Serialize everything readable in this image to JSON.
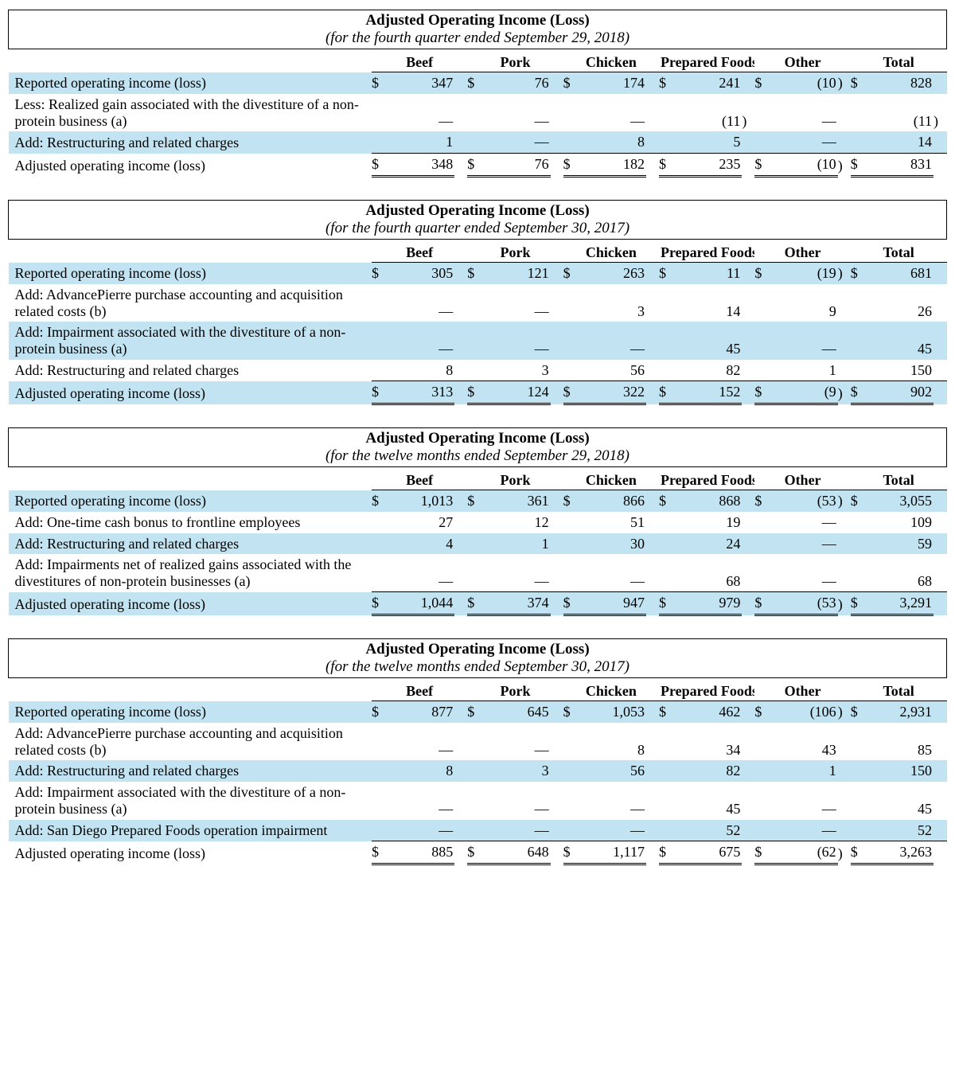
{
  "title": "Adjusted Operating Income (Loss)",
  "columns": [
    "Beef",
    "Pork",
    "Chicken",
    "Prepared Foods",
    "Other",
    "Total"
  ],
  "shade_color": "#c2e4f2",
  "tables": [
    {
      "subtitle": "(for the fourth quarter ended September 29, 2018)",
      "rows": [
        {
          "label": "Reported operating income (loss)",
          "shade": true,
          "dollar": true,
          "vals": [
            "347",
            "76",
            "174",
            "241",
            "(10)",
            "828"
          ]
        },
        {
          "label": "Less: Realized gain associated with the divestiture of a non-protein business (a)",
          "shade": false,
          "vals": [
            "—",
            "—",
            "—",
            "(11)",
            "—",
            "(11)"
          ]
        },
        {
          "label": "Add: Restructuring and related charges",
          "shade": true,
          "sumline": true,
          "vals": [
            "1",
            "—",
            "8",
            "5",
            "—",
            "14"
          ]
        },
        {
          "label": "Adjusted operating income (loss)",
          "shade": false,
          "dollar": true,
          "total": true,
          "vals": [
            "348",
            "76",
            "182",
            "235",
            "(10)",
            "831"
          ]
        }
      ]
    },
    {
      "subtitle": "(for the fourth quarter ended September 30, 2017)",
      "rows": [
        {
          "label": "Reported operating income (loss)",
          "shade": true,
          "dollar": true,
          "vals": [
            "305",
            "121",
            "263",
            "11",
            "(19)",
            "681"
          ]
        },
        {
          "label": "Add: AdvancePierre purchase accounting and acquisition related costs (b)",
          "shade": false,
          "vals": [
            "—",
            "—",
            "3",
            "14",
            "9",
            "26"
          ]
        },
        {
          "label": "Add: Impairment associated with the divestiture of a non-protein business (a)",
          "shade": true,
          "vals": [
            "—",
            "—",
            "—",
            "45",
            "—",
            "45"
          ]
        },
        {
          "label": "Add: Restructuring and related charges",
          "shade": false,
          "sumline": true,
          "vals": [
            "8",
            "3",
            "56",
            "82",
            "1",
            "150"
          ]
        },
        {
          "label": "Adjusted operating income (loss)",
          "shade": true,
          "dollar": true,
          "total": true,
          "vals": [
            "313",
            "124",
            "322",
            "152",
            "(9)",
            "902"
          ]
        }
      ]
    },
    {
      "subtitle": "(for the twelve months ended September 29, 2018)",
      "rows": [
        {
          "label": "Reported operating income (loss)",
          "shade": true,
          "dollar": true,
          "vals": [
            "1,013",
            "361",
            "866",
            "868",
            "(53)",
            "3,055"
          ]
        },
        {
          "label": "Add: One-time cash bonus to frontline employees",
          "shade": false,
          "vals": [
            "27",
            "12",
            "51",
            "19",
            "—",
            "109"
          ]
        },
        {
          "label": "Add: Restructuring and related charges",
          "shade": true,
          "vals": [
            "4",
            "1",
            "30",
            "24",
            "—",
            "59"
          ]
        },
        {
          "label": "Add: Impairments net of realized gains associated with the divestitures of non-protein businesses (a)",
          "shade": false,
          "sumline": true,
          "vals": [
            "—",
            "—",
            "—",
            "68",
            "—",
            "68"
          ]
        },
        {
          "label": "Adjusted operating income (loss)",
          "shade": true,
          "dollar": true,
          "total": true,
          "vals": [
            "1,044",
            "374",
            "947",
            "979",
            "(53)",
            "3,291"
          ]
        }
      ]
    },
    {
      "subtitle": "(for the twelve months ended September 30, 2017)",
      "rows": [
        {
          "label": "Reported operating income (loss)",
          "shade": true,
          "dollar": true,
          "vals": [
            "877",
            "645",
            "1,053",
            "462",
            "(106)",
            "2,931"
          ]
        },
        {
          "label": "Add: AdvancePierre purchase accounting and acquisition related costs (b)",
          "shade": false,
          "vals": [
            "—",
            "—",
            "8",
            "34",
            "43",
            "85"
          ]
        },
        {
          "label": "Add: Restructuring and related charges",
          "shade": true,
          "vals": [
            "8",
            "3",
            "56",
            "82",
            "1",
            "150"
          ]
        },
        {
          "label": "Add: Impairment associated with the divestiture of a non-protein business (a)",
          "shade": false,
          "vals": [
            "—",
            "—",
            "—",
            "45",
            "—",
            "45"
          ]
        },
        {
          "label": "Add: San Diego Prepared Foods operation impairment",
          "shade": true,
          "sumline": true,
          "vals": [
            "—",
            "—",
            "—",
            "52",
            "—",
            "52"
          ]
        },
        {
          "label": "Adjusted operating income (loss)",
          "shade": false,
          "dollar": true,
          "total": true,
          "vals": [
            "885",
            "648",
            "1,117",
            "675",
            "(62)",
            "3,263"
          ]
        }
      ]
    }
  ]
}
